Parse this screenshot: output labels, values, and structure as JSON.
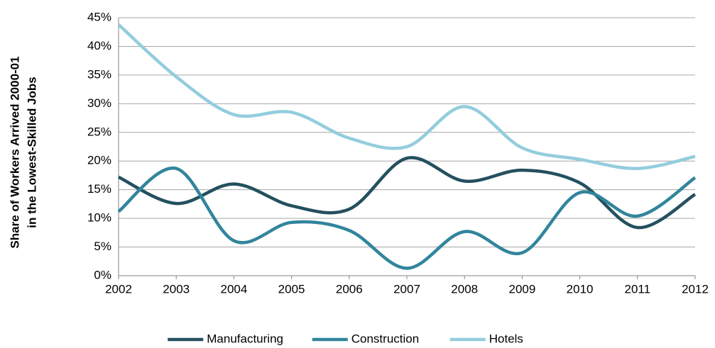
{
  "chart_data": {
    "type": "line",
    "ylabel": [
      "Share of Workers Arrived 2000-01",
      "in the Lowest-Skilled Jobs"
    ],
    "categories": [
      "2002",
      "2003",
      "2004",
      "2005",
      "2006",
      "2007",
      "2008",
      "2009",
      "2010",
      "2011",
      "2012"
    ],
    "series": [
      {
        "name": "Manufacturing",
        "color": "#23505f",
        "values": [
          17.2,
          12.6,
          16.0,
          12.2,
          11.6,
          20.5,
          16.5,
          18.4,
          16.2,
          8.4,
          14.2
        ]
      },
      {
        "name": "Construction",
        "color": "#31859c",
        "values": [
          11.2,
          18.7,
          6.1,
          9.3,
          7.9,
          1.3,
          7.7,
          4.0,
          14.5,
          10.4,
          17.1
        ]
      },
      {
        "name": "Hotels",
        "color": "#93cddd",
        "values": [
          43.8,
          34.7,
          28.1,
          28.5,
          24.0,
          22.5,
          29.5,
          22.3,
          20.3,
          18.7,
          20.8
        ]
      }
    ],
    "ylim": [
      0,
      45
    ],
    "yticks": [
      {
        "value": 0,
        "label": "0%"
      },
      {
        "value": 5,
        "label": "5%"
      },
      {
        "value": 10,
        "label": "10%"
      },
      {
        "value": 15,
        "label": "15%"
      },
      {
        "value": 20,
        "label": "20%"
      },
      {
        "value": 25,
        "label": "25%"
      },
      {
        "value": 30,
        "label": "30%"
      },
      {
        "value": 35,
        "label": "35%"
      },
      {
        "value": 40,
        "label": "40%"
      },
      {
        "value": 45,
        "label": "45%"
      }
    ],
    "grid": true,
    "legend": "bottom",
    "smooth": true
  }
}
